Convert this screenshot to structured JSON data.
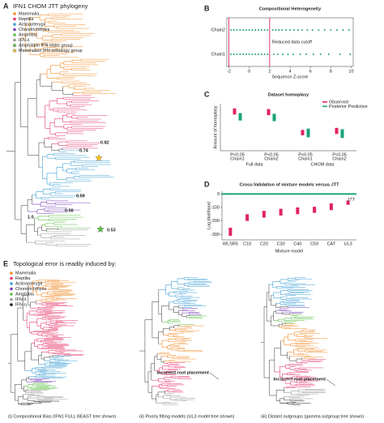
{
  "panel_a": {
    "label": "A",
    "title": "IFN1 CHOM JTT phylogeny",
    "legend": [
      {
        "name": "Mammalia",
        "color": "#f28c28"
      },
      {
        "name": "Reptilia",
        "color": "#e6396e"
      },
      {
        "name": "Actinopterygii",
        "color": "#3e9fd6"
      },
      {
        "name": "Chondrichthyes",
        "color": "#7a3db8"
      },
      {
        "name": "Amphibia",
        "color": "#5cbf45"
      },
      {
        "name": "IFN-λ",
        "color": "#9a9a9a"
      },
      {
        "name": "Amphibian IFN sister group",
        "color": "#5cbf45",
        "marker": "star"
      },
      {
        "name": "Mammalian IFN orthology group",
        "color": "#f5c518",
        "marker": "star"
      }
    ],
    "support": [
      "0.82",
      "0.74",
      "0.59",
      "0.56",
      "1.0",
      "0.53"
    ]
  },
  "chart_data": [
    {
      "panel": "B",
      "type": "strip",
      "title": "Compositional Heterogeneity",
      "categories": [
        "Chain2",
        "Chain1"
      ],
      "values": [
        [
          -1.8,
          -1.5,
          -1.2,
          -0.9,
          -0.6,
          -0.3,
          0,
          0.3,
          0.6,
          0.9,
          1.2,
          1.5,
          1.8,
          2.3,
          2.6,
          2.9,
          3.2,
          3.6,
          4.0,
          4.4,
          4.8,
          5.2,
          5.7,
          6.2,
          6.8,
          7.4,
          8.0,
          8.6,
          9.2,
          9.8
        ],
        [
          -1.8,
          -1.5,
          -1.2,
          -0.9,
          -0.6,
          -0.3,
          0,
          0.3,
          0.6,
          0.9,
          1.2,
          1.5,
          1.8,
          2.4,
          2.8,
          3.3,
          3.8,
          4.3,
          5.0,
          5.6,
          6.3,
          7.0,
          7.8,
          8.9,
          9.9
        ]
      ],
      "color": "#1aa37a",
      "xlabel": "Sequence Z-score",
      "xlim": [
        -2.2,
        10.2
      ],
      "xticks": [
        -2,
        0,
        2,
        4,
        6,
        8,
        10
      ],
      "cutoffs": [
        -2,
        2
      ],
      "cutoff_color": "#e0245e",
      "annotation": "Reduced data cutoff"
    },
    {
      "panel": "C",
      "type": "range",
      "title": "Dataset homoplasy",
      "ylabel": "Amount of homoplasy",
      "categories": [
        "Chain1",
        "Chain2",
        "Chain1",
        "Chain2"
      ],
      "groups": [
        "Full data",
        "CHOM data"
      ],
      "p_labels": [
        "P<0.05",
        "P<0.05",
        "P<0.05",
        "P<0.05"
      ],
      "series": [
        {
          "name": "Observed",
          "color": "#e0245e",
          "values": [
            [
              8.4,
              9.3
            ],
            [
              8.3,
              9.2
            ],
            [
              5.3,
              6.1
            ],
            [
              5.5,
              6.4
            ]
          ]
        },
        {
          "name": "Posterior Predictive",
          "color": "#1aa37a",
          "values": [
            [
              7.5,
              8.6
            ],
            [
              7.4,
              8.5
            ],
            [
              5.0,
              6.3
            ],
            [
              4.9,
              6.2
            ]
          ]
        }
      ],
      "ylim": [
        3,
        10
      ]
    },
    {
      "panel": "D",
      "type": "range",
      "title": "Cross-Validation of mixture models versus JTT",
      "ylabel": "Log-likelihood",
      "xlabel": "Mixture model",
      "categories": [
        "WLSR5",
        "C10",
        "C20",
        "C30",
        "C40",
        "C50",
        "CAT",
        "UL3"
      ],
      "values": [
        [
          -310,
          -250
        ],
        [
          -200,
          -150
        ],
        [
          -175,
          -125
        ],
        [
          -160,
          -110
        ],
        [
          -150,
          -100
        ],
        [
          -140,
          -95
        ],
        [
          -120,
          -70
        ],
        [
          -80,
          -50
        ]
      ],
      "color": "#e0245e",
      "reference": {
        "label": "JTT",
        "value": 0,
        "color": "#1aa37a"
      },
      "ylim": [
        -340,
        20
      ],
      "yticks": [
        -300,
        -200,
        -100,
        0
      ]
    }
  ],
  "panel_e": {
    "label": "E",
    "title": "Topological error is readily induced by:",
    "legend": [
      {
        "name": "Mammalia",
        "color": "#f28c28"
      },
      {
        "name": "Reptilia",
        "color": "#e6396e"
      },
      {
        "name": "Actinopterygii",
        "color": "#3e9fd6"
      },
      {
        "name": "Chondrichthyes",
        "color": "#7a3db8"
      },
      {
        "name": "Amphibia",
        "color": "#5cbf45"
      },
      {
        "name": "IFN-λ",
        "color": "#9a9a9a"
      },
      {
        "name": "IFN-η",
        "color": "#111111"
      }
    ],
    "annotation": "Incorrect root placement",
    "captions": [
      "(i) Compositional Bias (IFN1 FULL BEAST tree shown)",
      "(ii) Poorly fitting models (UL3 model tree shown)",
      "(iii) Distant outgroups (gamma outgroup tree shown)"
    ]
  }
}
